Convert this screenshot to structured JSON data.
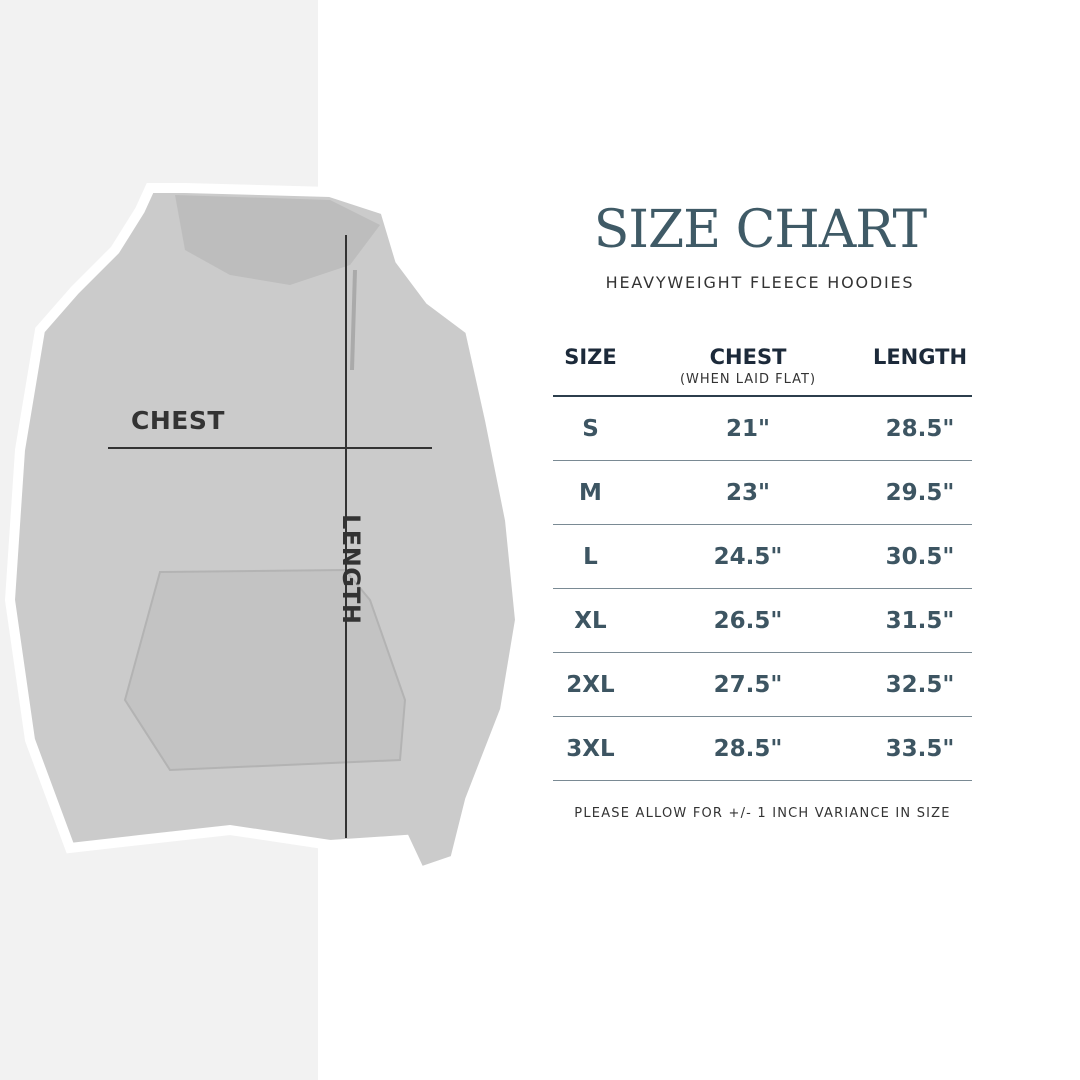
{
  "title": "SIZE CHART",
  "subtitle": "HEAVYWEIGHT FLEECE HOODIES",
  "image_labels": {
    "chest": "CHEST",
    "length": "LENGTH"
  },
  "table": {
    "headers": [
      {
        "label": "SIZE",
        "sub": ""
      },
      {
        "label": "CHEST",
        "sub": "(WHEN LAID FLAT)"
      },
      {
        "label": "LENGTH",
        "sub": ""
      }
    ],
    "rows": [
      [
        "S",
        "21\"",
        "28.5\""
      ],
      [
        "M",
        "23\"",
        "29.5\""
      ],
      [
        "L",
        "24.5\"",
        "30.5\""
      ],
      [
        "XL",
        "26.5\"",
        "31.5\""
      ],
      [
        "2XL",
        "27.5\"",
        "32.5\""
      ],
      [
        "3XL",
        "28.5\"",
        "33.5\""
      ]
    ]
  },
  "note": "PLEASE ALLOW FOR +/- 1 INCH VARIANCE IN SIZE",
  "colors": {
    "title": "#3f5a66",
    "header": "#1c2a3a",
    "value": "#3d5562",
    "hoodie": "#c9c9c9"
  }
}
